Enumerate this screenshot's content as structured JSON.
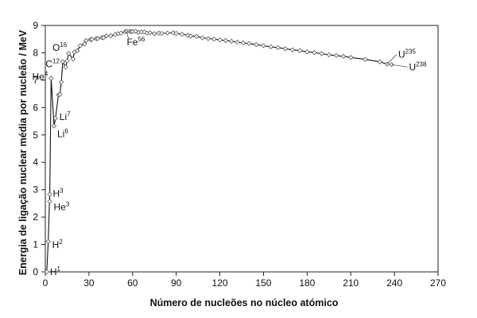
{
  "chart_data": {
    "type": "line",
    "title": "",
    "xlabel": "Número de nucleões no núcleo atómico",
    "ylabel": "Energia de ligação nuclear média por nucleão / MeV",
    "xlim": [
      0,
      270
    ],
    "ylim": [
      0,
      9
    ],
    "x_ticks": [
      "0",
      "30",
      "60",
      "90",
      "120",
      "150",
      "180",
      "210",
      "240",
      "270"
    ],
    "y_ticks": [
      "0",
      "1",
      "2",
      "3",
      "4",
      "5",
      "6",
      "7",
      "8",
      "9"
    ],
    "grid": false,
    "legend": "none",
    "line_color": "#111111",
    "marker_fill": "#ffffff",
    "marker_stroke": "#555555",
    "series": [
      {
        "x": [
          1,
          2,
          3,
          3,
          4,
          6,
          7,
          9,
          10,
          11,
          12,
          14,
          15,
          16,
          19,
          20,
          22,
          24,
          27,
          28,
          31,
          32,
          35,
          36,
          39,
          40,
          42,
          45,
          48,
          50,
          52,
          55,
          56,
          58,
          59,
          60,
          62,
          64,
          66,
          68,
          70,
          72,
          75,
          78,
          80,
          84,
          88,
          90,
          94,
          98,
          100,
          104,
          108,
          112,
          116,
          120,
          124,
          128,
          132,
          136,
          140,
          145,
          150,
          155,
          160,
          165,
          170,
          175,
          180,
          185,
          190,
          195,
          200,
          205,
          210,
          220,
          230,
          235,
          238
        ],
        "y": [
          0,
          1.11,
          2.83,
          2.57,
          7.07,
          5.33,
          5.61,
          6.46,
          6.48,
          6.93,
          7.68,
          7.48,
          7.7,
          7.98,
          7.78,
          8.03,
          8.08,
          8.26,
          8.33,
          8.45,
          8.48,
          8.49,
          8.52,
          8.52,
          8.56,
          8.55,
          8.62,
          8.62,
          8.67,
          8.7,
          8.72,
          8.77,
          8.79,
          8.79,
          8.77,
          8.78,
          8.79,
          8.74,
          8.76,
          8.76,
          8.72,
          8.73,
          8.7,
          8.72,
          8.71,
          8.72,
          8.73,
          8.71,
          8.68,
          8.64,
          8.61,
          8.6,
          8.55,
          8.52,
          8.5,
          8.47,
          8.45,
          8.42,
          8.39,
          8.36,
          8.34,
          8.3,
          8.26,
          8.22,
          8.19,
          8.15,
          8.11,
          8.08,
          8.04,
          8.01,
          7.97,
          7.93,
          7.9,
          7.87,
          7.83,
          7.76,
          7.67,
          7.59,
          7.57
        ]
      }
    ],
    "annotations": [
      {
        "base": "H",
        "sup": "1",
        "x": 1,
        "y": 0
      },
      {
        "base": "H",
        "sup": "2",
        "x": 2,
        "y": 1.11
      },
      {
        "base": "H",
        "sup": "3",
        "x": 3,
        "y": 2.83
      },
      {
        "base": "He",
        "sup": "3",
        "x": 3,
        "y": 2.57
      },
      {
        "base": "He",
        "sup": "4",
        "x": 4,
        "y": 7.07
      },
      {
        "base": "Li",
        "sup": "7",
        "x": 7,
        "y": 5.61
      },
      {
        "base": "Li",
        "sup": "6",
        "x": 6,
        "y": 5.33
      },
      {
        "base": "C",
        "sup": "12",
        "x": 12,
        "y": 7.68
      },
      {
        "base": "O",
        "sup": "16",
        "x": 16,
        "y": 7.98
      },
      {
        "base": "Fe",
        "sup": "56",
        "x": 56,
        "y": 8.79
      },
      {
        "base": "U",
        "sup": "235",
        "x": 235,
        "y": 7.59
      },
      {
        "base": "U",
        "sup": "238",
        "x": 238,
        "y": 7.57
      }
    ]
  }
}
